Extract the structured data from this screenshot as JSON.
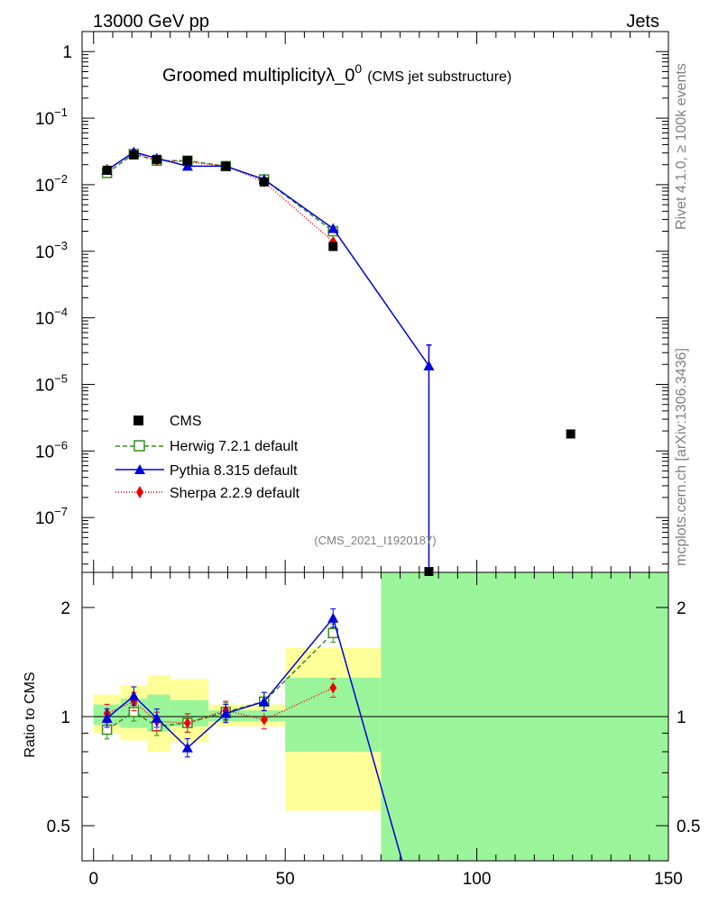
{
  "header": {
    "left": "13000 GeV pp",
    "right": "Jets"
  },
  "title": {
    "main": "Groomed multiplicityλ_0",
    "sup": "0",
    "sub": "(CMS jet substructure)"
  },
  "side_labels": {
    "rivet": "Rivet 4.1.0, ≥ 100k events",
    "mcplots": "mcplots.cern.ch [arXiv:1306.3436]"
  },
  "analysis_id": "(CMS_2021_I1920187)",
  "ratio_ylabel": "Ratio to CMS",
  "colors": {
    "cms": "#000000",
    "herwig": "#3a8a1e",
    "pythia": "#0000dd",
    "sherpa": "#ee0000",
    "band_green": "#9af59a",
    "band_yellow": "#ffff99"
  },
  "chart_data": [
    {
      "type": "line",
      "panel": "main",
      "yscale": "log",
      "xlim": [
        -3,
        150
      ],
      "ylim": [
        1.5e-08,
        2
      ],
      "yticks": [
        {
          "v": 1,
          "label": "1"
        },
        {
          "v": 0.1,
          "label": "10",
          "exp": "−1"
        },
        {
          "v": 0.01,
          "label": "10",
          "exp": "−2"
        },
        {
          "v": 0.001,
          "label": "10",
          "exp": "−3"
        },
        {
          "v": 0.0001,
          "label": "10",
          "exp": "−4"
        },
        {
          "v": 1e-05,
          "label": "10",
          "exp": "−5"
        },
        {
          "v": 1e-06,
          "label": "10",
          "exp": "−6"
        },
        {
          "v": 1e-07,
          "label": "10",
          "exp": "−7"
        }
      ],
      "series": [
        {
          "name": "CMS",
          "x": [
            3.5,
            10.5,
            16.5,
            24.5,
            34.5,
            44.5,
            62.5,
            87.5,
            124.5
          ],
          "y": [
            0.0165,
            0.028,
            0.024,
            0.023,
            0.019,
            0.011,
            0.00118,
            1.5e-08,
            1.8e-06
          ]
        },
        {
          "name": "Herwig 7.2.1 default",
          "x": [
            3.5,
            10.5,
            16.5,
            24.5,
            34.5,
            44.5,
            62.5
          ],
          "y": [
            0.015,
            0.029,
            0.023,
            0.023,
            0.019,
            0.012,
            0.002
          ]
        },
        {
          "name": "Pythia 8.315 default",
          "x": [
            3.5,
            10.5,
            16.5,
            24.5,
            34.5,
            44.5,
            62.5,
            87.5
          ],
          "y": [
            0.0165,
            0.031,
            0.025,
            0.019,
            0.019,
            0.012,
            0.0022,
            1.9e-05
          ],
          "err": [
            [
              87.5,
              1.5e-08,
              3.9e-05
            ]
          ]
        },
        {
          "name": "Sherpa 2.2.9 default",
          "x": [
            3.5,
            10.5,
            16.5,
            24.5,
            34.5,
            44.5,
            62.5
          ],
          "y": [
            0.017,
            0.03,
            0.023,
            0.022,
            0.019,
            0.011,
            0.0014
          ]
        }
      ]
    },
    {
      "type": "line",
      "panel": "ratio",
      "xlabel": "",
      "ylabel": "Ratio to CMS",
      "yscale": "log",
      "xlim": [
        -3,
        150
      ],
      "ylim": [
        0.4,
        2.5
      ],
      "xticks": [
        0,
        50,
        100,
        150
      ],
      "yticks": [
        0.5,
        1,
        2
      ],
      "bins": [
        [
          0,
          7
        ],
        [
          7,
          14
        ],
        [
          14,
          20
        ],
        [
          20,
          30
        ],
        [
          30,
          40
        ],
        [
          40,
          50
        ],
        [
          50,
          75
        ],
        [
          75,
          150
        ]
      ],
      "band_green": [
        [
          0.95,
          1.08
        ],
        [
          0.93,
          1.12
        ],
        [
          0.91,
          1.15
        ],
        [
          0.94,
          1.11
        ],
        [
          0.97,
          1.04
        ],
        [
          0.97,
          1.04
        ],
        [
          0.8,
          1.28
        ],
        [
          0.4,
          2.5
        ]
      ],
      "band_yellow": [
        [
          0.9,
          1.15
        ],
        [
          0.86,
          1.22
        ],
        [
          0.8,
          1.3
        ],
        [
          0.85,
          1.27
        ],
        [
          0.94,
          1.08
        ],
        [
          0.94,
          1.08
        ],
        [
          0.55,
          1.55
        ],
        [
          0.4,
          2.5
        ]
      ],
      "series": [
        {
          "name": "Herwig 7.2.1 default",
          "x": [
            3.5,
            10.5,
            16.5,
            24.5,
            34.5,
            44.5,
            62.5
          ],
          "y": [
            0.92,
            1.03,
            0.94,
            0.96,
            1.03,
            1.1,
            1.7
          ]
        },
        {
          "name": "Pythia 8.315 default",
          "x": [
            3.5,
            10.5,
            16.5,
            24.5,
            34.5,
            44.5,
            62.5,
            80.5
          ],
          "y": [
            0.99,
            1.14,
            0.99,
            0.82,
            1.02,
            1.1,
            1.87,
            0.4
          ]
        },
        {
          "name": "Sherpa 2.2.9 default",
          "x": [
            3.5,
            10.5,
            16.5,
            24.5,
            34.5,
            44.5,
            62.5
          ],
          "y": [
            1.02,
            1.1,
            0.97,
            0.96,
            1.04,
            0.98,
            1.2
          ]
        }
      ]
    }
  ]
}
